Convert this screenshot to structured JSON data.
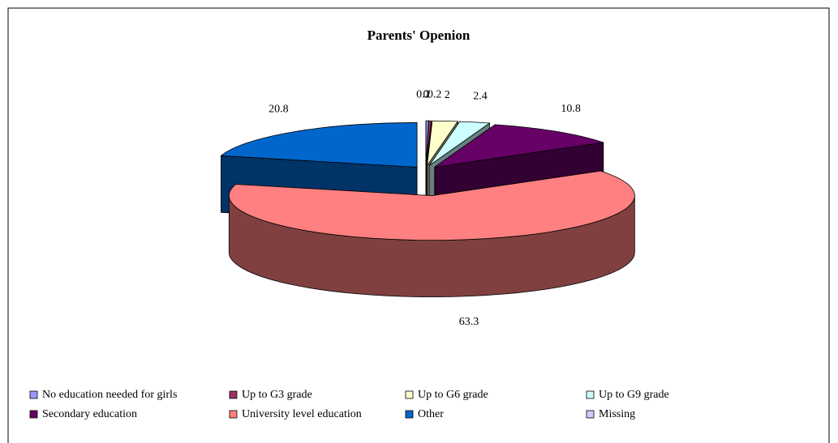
{
  "chart_data": {
    "type": "pie3d",
    "title": "Parents' Openion",
    "categories": [
      "No education needed for girls",
      "Up to G3 grade",
      "Up to G6 grade",
      "Up to G9 grade",
      "Secondary education",
      "University level education",
      "Other",
      "Missing"
    ],
    "values": [
      0.2,
      0.2,
      2,
      2.4,
      10.8,
      63.3,
      20.8,
      0
    ],
    "colors": [
      "#9999ff",
      "#993366",
      "#ffffcc",
      "#ccffff",
      "#660066",
      "#ff8080",
      "#0066cc",
      "#ccccff"
    ],
    "legend": "bottom"
  }
}
